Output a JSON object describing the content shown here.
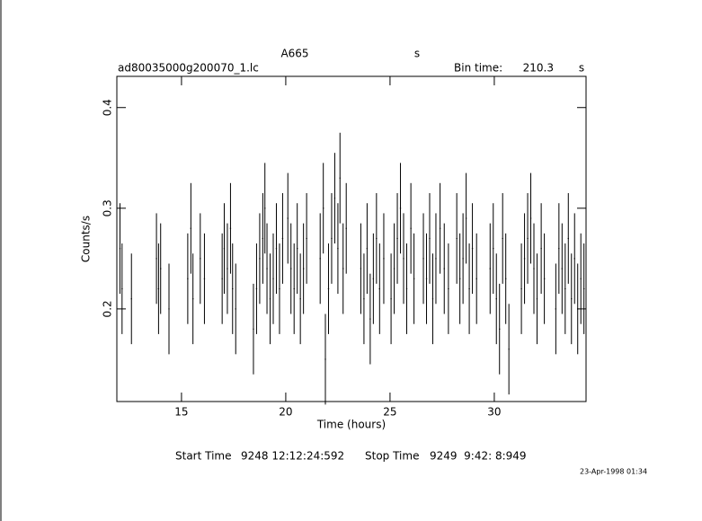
{
  "chart_data": {
    "type": "errorbar",
    "title": "A665",
    "title_unit": "s",
    "subtitle": "ad80035000g200070_1.lc",
    "bin_time_label": "Bin time:",
    "bin_time": 210.3,
    "bin_time_unit": "s",
    "xlabel": "Time (hours)",
    "ylabel": "Counts/s",
    "start_label": "Start Time",
    "start_time": "9248 12:12:24:592",
    "stop_label": "Stop Time",
    "stop_time": "9249  9:42: 8:949",
    "footnote": "23-Apr-1998 01:34",
    "xlim": [
      11.9,
      34.4
    ],
    "ylim": [
      0.108,
      0.431
    ],
    "xticks": [
      15,
      20,
      25,
      30
    ],
    "yticks": [
      0.2,
      0.3,
      0.4
    ],
    "color": "#000000",
    "series": [
      {
        "error": 0.045,
        "x": [
          12.05,
          12.15,
          12.6,
          13.8,
          13.9,
          14.0,
          14.4,
          15.3,
          15.45,
          15.55,
          15.9,
          16.1,
          16.95,
          17.05,
          17.2,
          17.35,
          17.45,
          17.6,
          18.45,
          18.6,
          18.75,
          18.9,
          19.0,
          19.1,
          19.25,
          19.4,
          19.55,
          19.7,
          19.85,
          20.1,
          20.25,
          20.4,
          20.55,
          20.7,
          20.85,
          21.0,
          21.65,
          21.8,
          21.9,
          22.05,
          22.2,
          22.35,
          22.5,
          22.6,
          22.75,
          22.9,
          23.6,
          23.75,
          23.9,
          24.05,
          24.2,
          24.35,
          24.5,
          24.7,
          25.05,
          25.2,
          25.35,
          25.5,
          25.65,
          25.8,
          26.0,
          26.15,
          26.6,
          26.75,
          26.9,
          27.05,
          27.2,
          27.4,
          27.6,
          27.8,
          28.2,
          28.35,
          28.5,
          28.65,
          28.8,
          28.95,
          29.15,
          29.8,
          29.95,
          30.1,
          30.25,
          30.4,
          30.55,
          30.7,
          31.3,
          31.45,
          31.6,
          31.75,
          31.9,
          32.05,
          32.25,
          32.4,
          32.95,
          33.1,
          33.25,
          33.4,
          33.55,
          33.7,
          33.85,
          34.0,
          34.15,
          34.3
        ],
        "values": [
          0.26,
          0.22,
          0.21,
          0.25,
          0.22,
          0.24,
          0.2,
          0.23,
          0.28,
          0.21,
          0.25,
          0.23,
          0.23,
          0.26,
          0.24,
          0.28,
          0.22,
          0.2,
          0.18,
          0.22,
          0.25,
          0.27,
          0.3,
          0.24,
          0.21,
          0.23,
          0.26,
          0.22,
          0.27,
          0.29,
          0.24,
          0.22,
          0.26,
          0.21,
          0.24,
          0.27,
          0.25,
          0.3,
          0.15,
          0.22,
          0.27,
          0.31,
          0.26,
          0.33,
          0.24,
          0.28,
          0.24,
          0.21,
          0.26,
          0.19,
          0.23,
          0.27,
          0.22,
          0.25,
          0.21,
          0.24,
          0.27,
          0.3,
          0.25,
          0.22,
          0.28,
          0.23,
          0.25,
          0.23,
          0.27,
          0.21,
          0.25,
          0.28,
          0.24,
          0.22,
          0.27,
          0.23,
          0.25,
          0.29,
          0.22,
          0.26,
          0.23,
          0.24,
          0.26,
          0.21,
          0.18,
          0.27,
          0.23,
          0.16,
          0.22,
          0.25,
          0.27,
          0.29,
          0.24,
          0.21,
          0.26,
          0.23,
          0.2,
          0.26,
          0.24,
          0.22,
          0.27,
          0.21,
          0.25,
          0.2,
          0.23,
          0.22
        ]
      }
    ]
  }
}
